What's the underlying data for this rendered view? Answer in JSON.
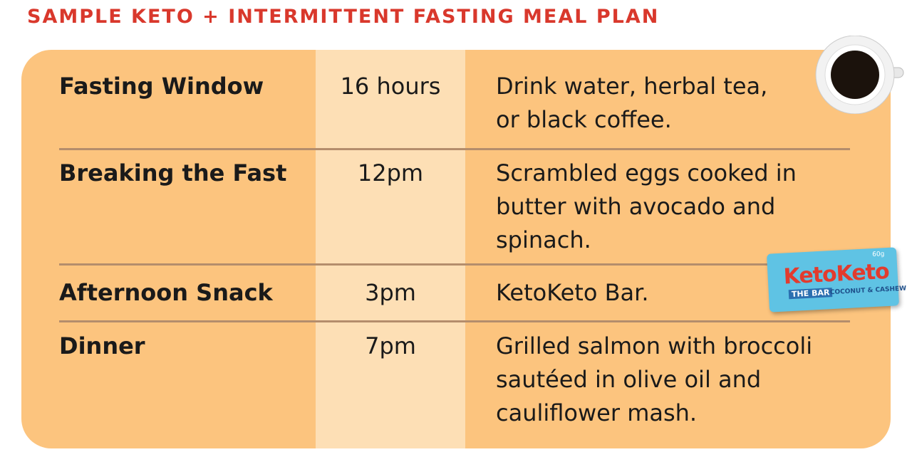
{
  "header": {
    "title": "SAMPLE KETO + INTERMITTENT FASTING MEAL PLAN"
  },
  "table": {
    "rows": [
      {
        "label": "Fasting Window",
        "time": "16 hours",
        "description": [
          "Drink water, herbal tea,",
          "or black coffee."
        ]
      },
      {
        "label": "Breaking the Fast",
        "time": "12pm",
        "description": [
          "Scrambled eggs cooked in",
          "butter with avocado and",
          "spinach."
        ]
      },
      {
        "label": "Afternoon Snack",
        "time": "3pm",
        "description": [
          "KetoKeto Bar."
        ]
      },
      {
        "label": "Dinner",
        "time": "7pm",
        "description": [
          "Grilled salmon with broccoli",
          "sautéed in olive oil and",
          "cauliflower mash."
        ]
      }
    ]
  },
  "bar_image": {
    "brand": "KetoKeto",
    "tag": "THE BAR",
    "flavor": "COCONUT & CASHEW",
    "weight": "60g"
  }
}
